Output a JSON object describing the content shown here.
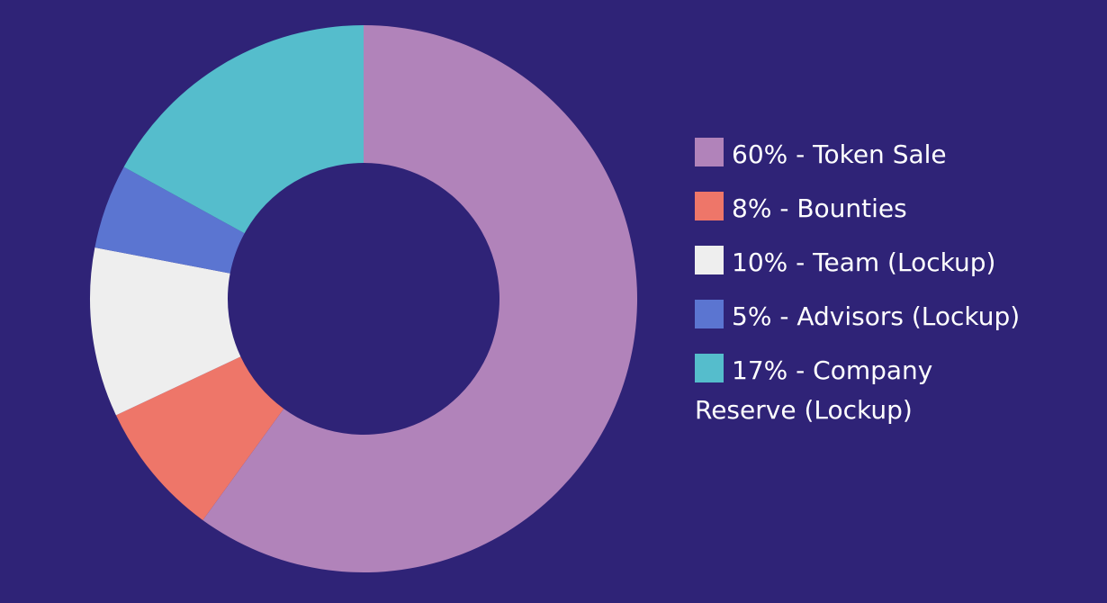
{
  "chart_data": {
    "type": "pie",
    "donut": true,
    "legend_position": "right",
    "slices": [
      {
        "label": "60% - Token Sale",
        "value": 60,
        "color": "#b183ba"
      },
      {
        "label": "8% - Bounties",
        "value": 8,
        "color": "#ee7669"
      },
      {
        "label": "10% - Team (Lockup)",
        "value": 10,
        "color": "#eeeeee"
      },
      {
        "label": "5% - Advisors (Lockup)",
        "value": 5,
        "color": "#5b75d1"
      },
      {
        "label": "17% - Company Reserve (Lockup)",
        "value": 17,
        "color": "#55bdcc"
      }
    ]
  }
}
